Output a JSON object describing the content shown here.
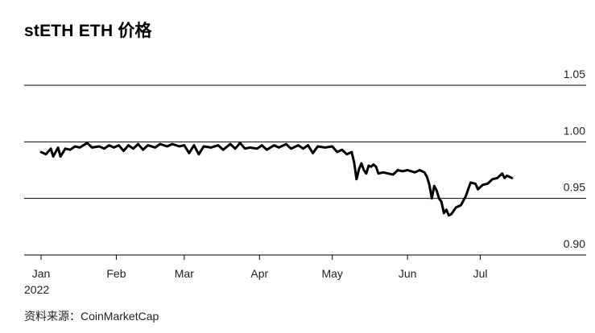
{
  "title": "stETH ETH 价格",
  "source": "资料来源：CoinMarketCap",
  "chart_data": {
    "type": "line",
    "title": "stETH ETH 价格",
    "xlabel": "",
    "ylabel": "",
    "ylim": [
      0.9,
      1.05
    ],
    "yticks": [
      {
        "value": 1.05,
        "label": "1.05"
      },
      {
        "value": 1.0,
        "label": "1.00"
      },
      {
        "value": 0.95,
        "label": "0.95"
      },
      {
        "value": 0.9,
        "label": "0.90"
      }
    ],
    "xlim": [
      "2022-01-01",
      "2022-07-31"
    ],
    "xticks": [
      {
        "date": "2022-01-01",
        "label": "Jan",
        "sublabel": "2022"
      },
      {
        "date": "2022-02-01",
        "label": "Feb"
      },
      {
        "date": "2022-03-01",
        "label": "Mar"
      },
      {
        "date": "2022-04-01",
        "label": "Apr"
      },
      {
        "date": "2022-05-01",
        "label": "May"
      },
      {
        "date": "2022-06-01",
        "label": "Jun"
      },
      {
        "date": "2022-07-01",
        "label": "Jul"
      }
    ],
    "grid": true,
    "colors": {
      "line": "#000000",
      "grid": "#000000"
    },
    "series": [
      {
        "points": [
          [
            "2022-01-01",
            0.991
          ],
          [
            "2022-01-03",
            0.989
          ],
          [
            "2022-01-05",
            0.994
          ],
          [
            "2022-01-06",
            0.987
          ],
          [
            "2022-01-08",
            0.995
          ],
          [
            "2022-01-09",
            0.987
          ],
          [
            "2022-01-11",
            0.994
          ],
          [
            "2022-01-13",
            0.993
          ],
          [
            "2022-01-15",
            0.996
          ],
          [
            "2022-01-17",
            0.995
          ],
          [
            "2022-01-20",
            0.999
          ],
          [
            "2022-01-22",
            0.995
          ],
          [
            "2022-01-25",
            0.996
          ],
          [
            "2022-01-27",
            0.994
          ],
          [
            "2022-01-29",
            0.997
          ],
          [
            "2022-01-31",
            0.995
          ],
          [
            "2022-02-02",
            0.997
          ],
          [
            "2022-02-04",
            0.992
          ],
          [
            "2022-02-06",
            0.997
          ],
          [
            "2022-02-08",
            0.994
          ],
          [
            "2022-02-10",
            0.998
          ],
          [
            "2022-02-12",
            0.993
          ],
          [
            "2022-02-14",
            0.997
          ],
          [
            "2022-02-17",
            0.995
          ],
          [
            "2022-02-19",
            0.998
          ],
          [
            "2022-02-22",
            0.996
          ],
          [
            "2022-02-24",
            0.998
          ],
          [
            "2022-02-27",
            0.996
          ],
          [
            "2022-03-01",
            0.997
          ],
          [
            "2022-03-03",
            0.99
          ],
          [
            "2022-03-05",
            0.997
          ],
          [
            "2022-03-07",
            0.989
          ],
          [
            "2022-03-09",
            0.996
          ],
          [
            "2022-03-12",
            0.995
          ],
          [
            "2022-03-15",
            0.997
          ],
          [
            "2022-03-17",
            0.993
          ],
          [
            "2022-03-20",
            0.998
          ],
          [
            "2022-03-22",
            0.994
          ],
          [
            "2022-03-24",
            0.999
          ],
          [
            "2022-03-26",
            0.994
          ],
          [
            "2022-03-28",
            0.995
          ],
          [
            "2022-03-31",
            0.994
          ],
          [
            "2022-04-02",
            0.997
          ],
          [
            "2022-04-04",
            0.993
          ],
          [
            "2022-04-07",
            0.997
          ],
          [
            "2022-04-09",
            0.995
          ],
          [
            "2022-04-12",
            0.998
          ],
          [
            "2022-04-14",
            0.994
          ],
          [
            "2022-04-17",
            0.997
          ],
          [
            "2022-04-19",
            0.994
          ],
          [
            "2022-04-21",
            0.997
          ],
          [
            "2022-04-23",
            0.99
          ],
          [
            "2022-04-25",
            0.996
          ],
          [
            "2022-04-28",
            0.995
          ],
          [
            "2022-05-01",
            0.996
          ],
          [
            "2022-05-03",
            0.991
          ],
          [
            "2022-05-05",
            0.993
          ],
          [
            "2022-05-07",
            0.989
          ],
          [
            "2022-05-09",
            0.991
          ],
          [
            "2022-05-10",
            0.982
          ],
          [
            "2022-05-11",
            0.967
          ],
          [
            "2022-05-12",
            0.976
          ],
          [
            "2022-05-13",
            0.981
          ],
          [
            "2022-05-14",
            0.975
          ],
          [
            "2022-05-15",
            0.972
          ],
          [
            "2022-05-16",
            0.979
          ],
          [
            "2022-05-17",
            0.978
          ],
          [
            "2022-05-18",
            0.98
          ],
          [
            "2022-05-19",
            0.978
          ],
          [
            "2022-05-20",
            0.972
          ],
          [
            "2022-05-22",
            0.973
          ],
          [
            "2022-05-24",
            0.972
          ],
          [
            "2022-05-26",
            0.971
          ],
          [
            "2022-05-28",
            0.975
          ],
          [
            "2022-05-30",
            0.974
          ],
          [
            "2022-06-01",
            0.975
          ],
          [
            "2022-06-04",
            0.973
          ],
          [
            "2022-06-06",
            0.975
          ],
          [
            "2022-06-08",
            0.973
          ],
          [
            "2022-06-09",
            0.969
          ],
          [
            "2022-06-10",
            0.962
          ],
          [
            "2022-06-11",
            0.95
          ],
          [
            "2022-06-12",
            0.961
          ],
          [
            "2022-06-13",
            0.957
          ],
          [
            "2022-06-14",
            0.95
          ],
          [
            "2022-06-15",
            0.947
          ],
          [
            "2022-06-16",
            0.937
          ],
          [
            "2022-06-17",
            0.94
          ],
          [
            "2022-06-18",
            0.935
          ],
          [
            "2022-06-19",
            0.936
          ],
          [
            "2022-06-20",
            0.939
          ],
          [
            "2022-06-21",
            0.942
          ],
          [
            "2022-06-23",
            0.944
          ],
          [
            "2022-06-25",
            0.952
          ],
          [
            "2022-06-26",
            0.958
          ],
          [
            "2022-06-27",
            0.964
          ],
          [
            "2022-06-29",
            0.963
          ],
          [
            "2022-06-30",
            0.958
          ],
          [
            "2022-07-02",
            0.962
          ],
          [
            "2022-07-04",
            0.963
          ],
          [
            "2022-07-06",
            0.967
          ],
          [
            "2022-07-08",
            0.968
          ],
          [
            "2022-07-10",
            0.972
          ],
          [
            "2022-07-11",
            0.968
          ],
          [
            "2022-07-12",
            0.97
          ],
          [
            "2022-07-14",
            0.968
          ]
        ]
      }
    ]
  }
}
